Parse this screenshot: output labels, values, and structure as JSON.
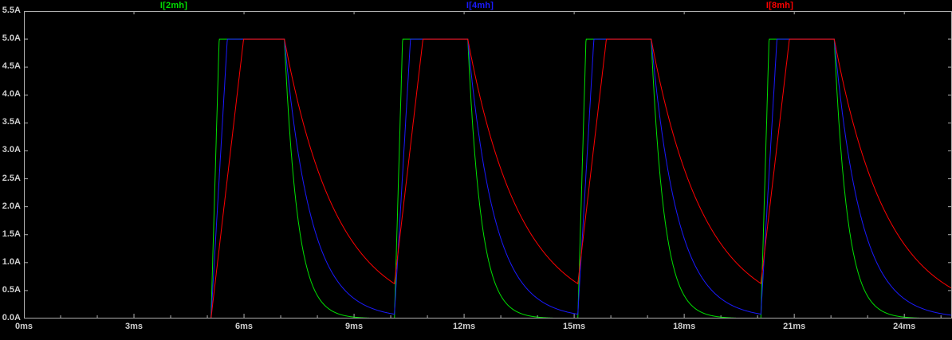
{
  "window": {
    "background": "#000000"
  },
  "colors": {
    "axis": "#b0b0b0",
    "tick_text": "#cfcfcf",
    "series_green": "#00e000",
    "series_blue": "#1a1aff",
    "series_red": "#ff0000"
  },
  "chart_data": {
    "type": "line",
    "title": "",
    "description": "Inductor current waveforms for three inductances driven by a periodic pulse: fast ramp up to a 5.0 A plateau, then exponential decay after turn-off. Larger inductance ramps slower and decays slower.",
    "x_axis": {
      "label": "",
      "unit": "ms",
      "range": [
        0,
        25.3
      ],
      "ticks": [
        0,
        3,
        6,
        9,
        12,
        15,
        18,
        21,
        24
      ],
      "tick_labels": [
        "0ms",
        "3ms",
        "6ms",
        "9ms",
        "12ms",
        "15ms",
        "18ms",
        "21ms",
        "24ms"
      ],
      "minor_tick_ms": 1
    },
    "y_axis": {
      "label": "",
      "unit": "A",
      "range": [
        0,
        5.5
      ],
      "tick_step": 0.5,
      "tick_labels": [
        "0.0A",
        "0.5A",
        "1.0A",
        "1.5A",
        "2.0A",
        "2.5A",
        "3.0A",
        "3.5A",
        "4.0A",
        "4.5A",
        "5.0A",
        "5.5A"
      ]
    },
    "grid": false,
    "legend_position": "top",
    "pulse_model": {
      "amplitude_A": 5.0,
      "first_on_ms": 5.1,
      "on_duration_ms": 2.0,
      "period_ms": 5.0,
      "cycles": 4,
      "initial_current_A": 0.0
    },
    "series": [
      {
        "name": "I[2mh]",
        "color": "#00e000",
        "inductance_mH": 2,
        "rise_slope_A_per_ms": 22.5,
        "decay_tau_ms": 0.36,
        "plateau_A": 5.0,
        "residual_at_next_pulse_A": 0.0
      },
      {
        "name": "I[4mh]",
        "color": "#1a1aff",
        "inductance_mH": 4,
        "rise_slope_A_per_ms": 11.25,
        "decay_tau_ms": 0.72,
        "plateau_A": 5.0,
        "residual_at_next_pulse_A": 0.08
      },
      {
        "name": "I[8mh]",
        "color": "#ff0000",
        "inductance_mH": 8,
        "rise_slope_A_per_ms": 5.625,
        "decay_tau_ms": 1.44,
        "plateau_A": 5.0,
        "residual_at_next_pulse_A": 0.62
      }
    ]
  }
}
